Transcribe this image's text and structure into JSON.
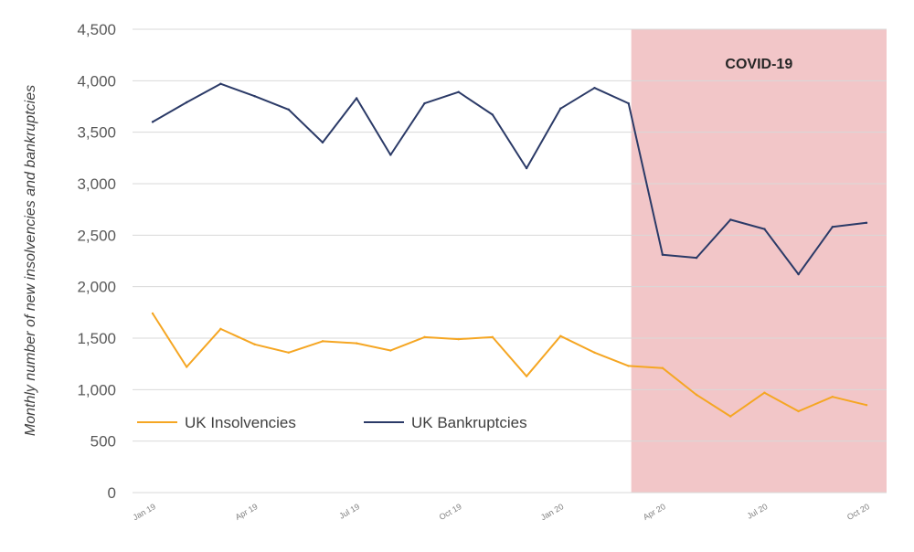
{
  "chart_data": {
    "type": "line",
    "title": "",
    "xlabel": "",
    "ylabel": "Monthly number of new insolvencies and bankruptcies",
    "ylim": [
      0,
      4500
    ],
    "yticks": [
      0,
      500,
      1000,
      1500,
      2000,
      2500,
      3000,
      3500,
      4000,
      4500
    ],
    "ytick_labels": [
      "0",
      "500",
      "1,000",
      "1,500",
      "2,000",
      "2,500",
      "3,000",
      "3,500",
      "4,000",
      "4,500"
    ],
    "grid": true,
    "legend_position": "lower-left",
    "x": [
      "Jan 19",
      "Feb 19",
      "Mar 19",
      "Apr 19",
      "May 19",
      "Jun 19",
      "Jul 19",
      "Aug 19",
      "Sep 19",
      "Oct 19",
      "Nov 19",
      "Dec 19",
      "Jan 20",
      "Feb 20",
      "Mar 20",
      "Apr 20",
      "May 20",
      "Jun 20",
      "Jul 20",
      "Aug 20",
      "Sep 20",
      "Oct 20"
    ],
    "xtick_labels": [
      {
        "index": 0,
        "label": "Jan 19"
      },
      {
        "index": 3,
        "label": "Apr 19"
      },
      {
        "index": 6,
        "label": "Jul 19"
      },
      {
        "index": 9,
        "label": "Oct 19"
      },
      {
        "index": 12,
        "label": "Jan 20"
      },
      {
        "index": 15,
        "label": "Apr 20"
      },
      {
        "index": 18,
        "label": "Jul 20"
      },
      {
        "index": 21,
        "label": "Oct 20"
      }
    ],
    "series": [
      {
        "name": "UK Insolvencies",
        "color": "#f5a623",
        "values": [
          1740,
          1220,
          1590,
          1440,
          1360,
          1470,
          1450,
          1380,
          1510,
          1490,
          1510,
          1130,
          1520,
          1360,
          1230,
          1210,
          950,
          740,
          970,
          790,
          930,
          850
        ]
      },
      {
        "name": "UK Bankruptcies",
        "color": "#2b3a67",
        "values": [
          3600,
          3790,
          3970,
          3850,
          3720,
          3400,
          3830,
          3280,
          3780,
          3890,
          3670,
          3150,
          3730,
          3930,
          3780,
          2310,
          2280,
          2650,
          2560,
          2120,
          2580,
          2620
        ]
      }
    ],
    "shaded_region": {
      "label": "COVID-19",
      "from_index": 14,
      "to_index": 21,
      "color": "#f2c6c8"
    }
  }
}
